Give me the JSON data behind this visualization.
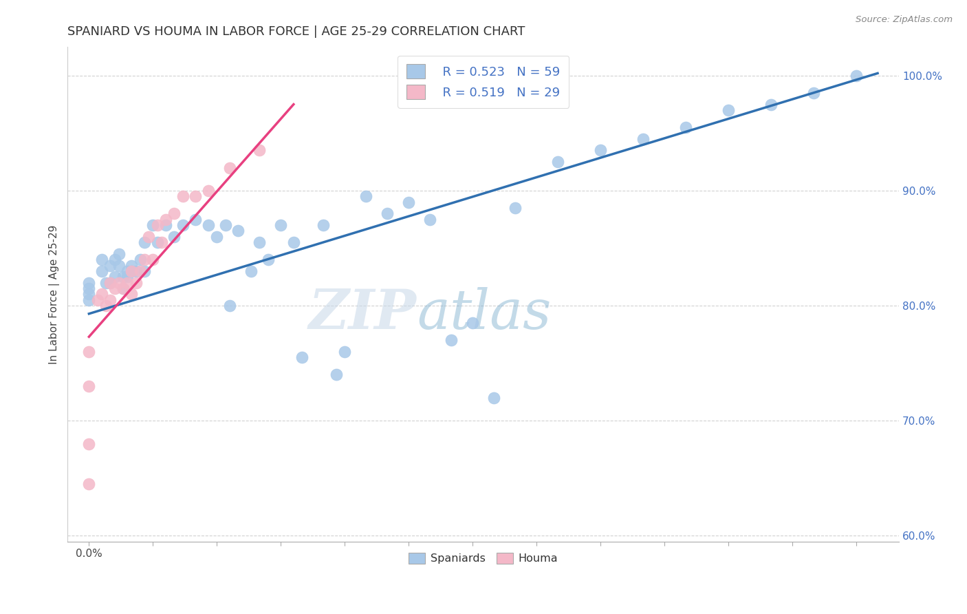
{
  "title": "SPANIARD VS HOUMA IN LABOR FORCE | AGE 25-29 CORRELATION CHART",
  "source": "Source: ZipAtlas.com",
  "ylabel": "In Labor Force | Age 25-29",
  "xlim": [
    -0.005,
    0.19
  ],
  "ylim": [
    0.595,
    1.025
  ],
  "yticks": [
    0.6,
    0.7,
    0.8,
    0.9,
    1.0
  ],
  "ytick_labels": [
    "60.0%",
    "70.0%",
    "80.0%",
    "90.0%",
    "100.0%"
  ],
  "blue_color": "#a8c8e8",
  "pink_color": "#f4b8c8",
  "blue_line_color": "#3070b0",
  "pink_line_color": "#e84080",
  "legend_R_blue": "R = 0.523",
  "legend_N_blue": "N = 59",
  "legend_R_pink": "R = 0.519",
  "legend_N_pink": "N = 29",
  "blue_label": "Spaniards",
  "pink_label": "Houma",
  "watermark_zip": "ZIP",
  "watermark_atlas": "atlas",
  "blue_x": [
    0.0,
    0.0,
    0.0,
    0.0,
    0.003,
    0.003,
    0.004,
    0.005,
    0.005,
    0.006,
    0.006,
    0.007,
    0.007,
    0.008,
    0.008,
    0.009,
    0.009,
    0.01,
    0.01,
    0.011,
    0.012,
    0.013,
    0.013,
    0.015,
    0.016,
    0.018,
    0.02,
    0.022,
    0.025,
    0.028,
    0.03,
    0.032,
    0.033,
    0.035,
    0.038,
    0.04,
    0.042,
    0.045,
    0.048,
    0.05,
    0.055,
    0.058,
    0.06,
    0.065,
    0.07,
    0.075,
    0.08,
    0.085,
    0.09,
    0.095,
    0.1,
    0.11,
    0.12,
    0.13,
    0.14,
    0.15,
    0.16,
    0.17,
    0.18
  ],
  "blue_y": [
    0.82,
    0.815,
    0.81,
    0.805,
    0.84,
    0.83,
    0.82,
    0.835,
    0.82,
    0.84,
    0.825,
    0.845,
    0.835,
    0.825,
    0.815,
    0.83,
    0.825,
    0.835,
    0.83,
    0.83,
    0.84,
    0.855,
    0.83,
    0.87,
    0.855,
    0.87,
    0.86,
    0.87,
    0.875,
    0.87,
    0.86,
    0.87,
    0.8,
    0.865,
    0.83,
    0.855,
    0.84,
    0.87,
    0.855,
    0.755,
    0.87,
    0.74,
    0.76,
    0.895,
    0.88,
    0.89,
    0.875,
    0.77,
    0.785,
    0.72,
    0.885,
    0.925,
    0.935,
    0.945,
    0.955,
    0.97,
    0.975,
    0.985,
    1.0
  ],
  "pink_x": [
    0.0,
    0.0,
    0.0,
    0.0,
    0.002,
    0.003,
    0.004,
    0.005,
    0.005,
    0.006,
    0.007,
    0.008,
    0.009,
    0.01,
    0.01,
    0.011,
    0.012,
    0.013,
    0.014,
    0.015,
    0.016,
    0.017,
    0.018,
    0.02,
    0.022,
    0.025,
    0.028,
    0.033,
    0.04
  ],
  "pink_y": [
    0.645,
    0.68,
    0.73,
    0.76,
    0.805,
    0.81,
    0.8,
    0.805,
    0.82,
    0.815,
    0.82,
    0.815,
    0.82,
    0.83,
    0.81,
    0.82,
    0.83,
    0.84,
    0.86,
    0.84,
    0.87,
    0.855,
    0.875,
    0.88,
    0.895,
    0.895,
    0.9,
    0.92,
    0.935
  ],
  "blue_line_x": [
    0.0,
    0.185
  ],
  "blue_line_y": [
    0.793,
    1.002
  ],
  "pink_line_x": [
    0.0,
    0.048
  ],
  "pink_line_y": [
    0.773,
    0.975
  ]
}
